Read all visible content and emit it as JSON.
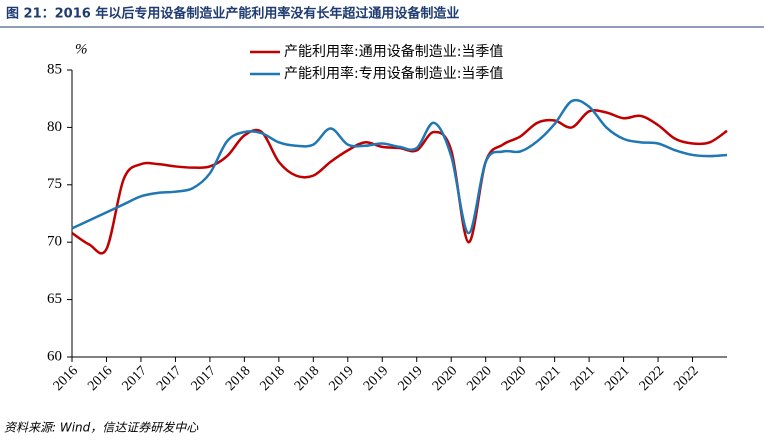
{
  "chart_data": {
    "type": "line",
    "title": "图 21：2016 年以后专用设备制造业产能利用率没有长年超过通用设备制造业",
    "y_label": "%",
    "source": "资料来源: Wind，信达证券研发中心",
    "categories": [
      "2016",
      null,
      "2016",
      null,
      "2017",
      null,
      "2017",
      null,
      "2017",
      null,
      "2018",
      null,
      "2018",
      null,
      "2018",
      null,
      "2019",
      null,
      "2019",
      null,
      "2019",
      null,
      "2020",
      null,
      "2020",
      null,
      "2020",
      null,
      "2021",
      null,
      "2021",
      null,
      "2021",
      null,
      "2022",
      null,
      "2022",
      null,
      null
    ],
    "series": [
      {
        "name": "产能利用率:通用设备制造业:当季值",
        "color": "#c00000",
        "values": [
          70.8,
          69.8,
          69.4,
          75.5,
          76.8,
          76.8,
          76.6,
          76.5,
          76.6,
          77.5,
          79.3,
          79.6,
          77.0,
          75.8,
          75.8,
          77.0,
          78.0,
          78.7,
          78.3,
          78.2,
          78.0,
          79.6,
          78.0,
          70.0,
          77.0,
          78.5,
          79.2,
          80.4,
          80.6,
          80.0,
          81.4,
          81.3,
          80.8,
          81.0,
          80.2,
          79.0,
          78.6,
          78.7,
          79.7
        ]
      },
      {
        "name": "产能利用率:专用设备制造业:当季值",
        "color": "#1f77b4",
        "values": [
          71.2,
          71.9,
          72.6,
          73.3,
          74.0,
          74.3,
          74.4,
          74.7,
          76.0,
          78.8,
          79.6,
          79.5,
          78.7,
          78.4,
          78.5,
          79.9,
          78.5,
          78.4,
          78.6,
          78.3,
          78.2,
          80.4,
          77.5,
          70.8,
          77.0,
          77.9,
          77.9,
          78.8,
          80.3,
          82.3,
          81.8,
          80.0,
          79.0,
          78.7,
          78.6,
          78.0,
          77.6,
          77.5,
          77.6
        ]
      }
    ],
    "ylim": [
      60,
      85
    ],
    "yticks": [
      60,
      65,
      70,
      75,
      80,
      85
    ]
  }
}
